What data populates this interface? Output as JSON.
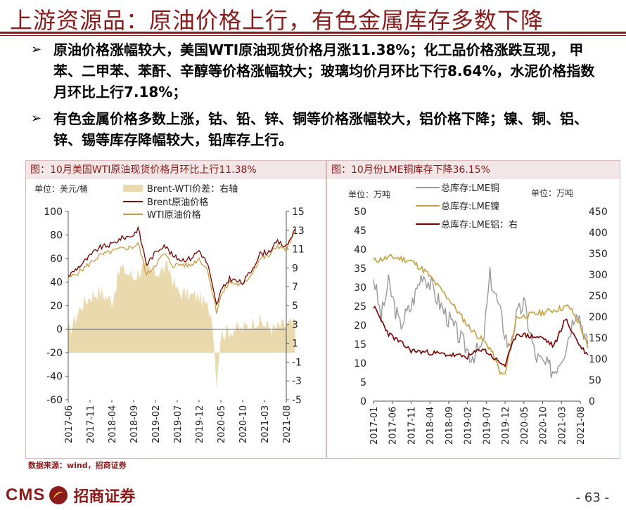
{
  "header": {
    "title": "上游资源品：原油价格上行，有色金属库存多数下降"
  },
  "bullets": [
    "原油价格涨幅较大，美国WTI原油现货价格月涨11.38%；化工品价格涨跌互现， 甲苯、二甲苯、苯酐、辛醇等价格涨幅较大；玻璃均价月环比下行8.64%，水泥价格指数月环比上行7.18%；",
    "有色金属价格多数上涨，钴、铅、锌、铜等价格涨幅较大，铝价格下降；镍、铜、铝、锌、锡等库存降幅较大，铅库存上行。"
  ],
  "bullet_marker": "➢",
  "footer": {
    "source": "数据来源：wind，招商证券",
    "logo_text": "CMS",
    "logo_cn": "招商证券",
    "page": "- 63 -"
  },
  "colors": {
    "brand": "#8b1a1a",
    "brent": "#7a0000",
    "wti": "#c8a040",
    "spread": "#e9d9ad",
    "lme_cu": "#999999",
    "lme_ni": "#c8a040",
    "lme_al": "#7a0000"
  },
  "chart_data": [
    {
      "type": "line",
      "title": "图：10月美国WTI原油现货价格月环比上行11.38%",
      "left_unit": "单位：美元/桶",
      "x_ticks": [
        "2017-06",
        "2017-11",
        "2018-04",
        "2018-09",
        "2019-02",
        "2019-07",
        "2019-12",
        "2020-05",
        "2020-10",
        "2021-03",
        "2021-08"
      ],
      "ylim": [
        -60,
        100
      ],
      "y_ticks": [
        100,
        80,
        60,
        40,
        20,
        0,
        -20,
        -40,
        -60
      ],
      "y2lim": [
        -5,
        15
      ],
      "y2_ticks": [
        15,
        13,
        11,
        9,
        7,
        5,
        3,
        1,
        -1,
        -3,
        -5
      ],
      "legend_position": "top",
      "series": [
        {
          "name": "Brent-WTI价差：右轴",
          "type": "area",
          "axis": "right",
          "x": [
            "2017-06",
            "2017-09",
            "2017-11",
            "2018-01",
            "2018-04",
            "2018-06",
            "2018-09",
            "2018-11",
            "2019-02",
            "2019-05",
            "2019-07",
            "2019-10",
            "2019-12",
            "2020-03",
            "2020-04",
            "2020-05",
            "2020-08",
            "2020-10",
            "2021-01",
            "2021-03",
            "2021-05",
            "2021-08",
            "2021-10"
          ],
          "values": [
            2,
            5,
            6,
            6.5,
            5.5,
            9,
            8,
            9,
            8.5,
            9,
            6.5,
            6,
            6,
            4,
            -3,
            2,
            2.5,
            2.5,
            3.5,
            3,
            2.5,
            3,
            3
          ]
        },
        {
          "name": "Brent原油价格",
          "type": "line",
          "axis": "left",
          "x": [
            "2017-06",
            "2017-09",
            "2017-11",
            "2018-01",
            "2018-04",
            "2018-06",
            "2018-09",
            "2018-10",
            "2018-12",
            "2019-02",
            "2019-04",
            "2019-06",
            "2019-08",
            "2019-10",
            "2019-12",
            "2020-02",
            "2020-04",
            "2020-05",
            "2020-07",
            "2020-10",
            "2020-12",
            "2021-02",
            "2021-04",
            "2021-06",
            "2021-08",
            "2021-10"
          ],
          "values": [
            45,
            55,
            62,
            69,
            72,
            77,
            80,
            86,
            55,
            65,
            72,
            62,
            59,
            60,
            67,
            55,
            20,
            32,
            43,
            39,
            50,
            64,
            66,
            74,
            70,
            85
          ]
        },
        {
          "name": "WTI原油价格",
          "type": "line",
          "axis": "left",
          "x": [
            "2017-06",
            "2017-09",
            "2017-11",
            "2018-01",
            "2018-04",
            "2018-06",
            "2018-09",
            "2018-10",
            "2018-12",
            "2019-02",
            "2019-04",
            "2019-06",
            "2019-08",
            "2019-10",
            "2019-12",
            "2020-02",
            "2020-04",
            "2020-05",
            "2020-07",
            "2020-10",
            "2020-12",
            "2021-02",
            "2021-04",
            "2021-06",
            "2021-08",
            "2021-10"
          ],
          "values": [
            43,
            50,
            56,
            62,
            66,
            68,
            70,
            73,
            46,
            55,
            64,
            54,
            55,
            54,
            60,
            50,
            15,
            28,
            40,
            37,
            47,
            60,
            62,
            71,
            67,
            83
          ]
        }
      ]
    },
    {
      "type": "line",
      "title": "图：10月份LME铜库存下降36.15%",
      "left_unit": "单位：万吨",
      "right_unit": "单位：万吨",
      "x_ticks": [
        "2017-01",
        "2017-06",
        "2017-11",
        "2018-04",
        "2018-09",
        "2019-02",
        "2019-07",
        "2019-12",
        "2020-05",
        "2020-10",
        "2021-03",
        "2021-08"
      ],
      "ylim": [
        0,
        50
      ],
      "y_ticks": [
        50,
        45,
        40,
        35,
        30,
        25,
        20,
        15,
        10,
        5,
        0
      ],
      "y2lim": [
        0,
        450
      ],
      "y2_ticks": [
        450,
        400,
        350,
        300,
        250,
        200,
        150,
        100,
        50,
        0
      ],
      "legend_position": "top",
      "series": [
        {
          "name": "总库存:LME铜",
          "axis": "left",
          "x": [
            "2017-01",
            "2017-03",
            "2017-05",
            "2017-08",
            "2017-11",
            "2018-02",
            "2018-04",
            "2018-07",
            "2018-10",
            "2019-01",
            "2019-03",
            "2019-06",
            "2019-08",
            "2019-10",
            "2020-01",
            "2020-03",
            "2020-05",
            "2020-08",
            "2020-10",
            "2021-01",
            "2021-04",
            "2021-07",
            "2021-10"
          ],
          "values": [
            33,
            22,
            31,
            20,
            25,
            34,
            31,
            25,
            20,
            15,
            12,
            14,
            33,
            26,
            14,
            22,
            26,
            12,
            10,
            8,
            14,
            25,
            15
          ]
        },
        {
          "name": "总库存:LME镍",
          "axis": "left",
          "x": [
            "2017-01",
            "2017-06",
            "2017-11",
            "2018-03",
            "2018-09",
            "2019-02",
            "2019-06",
            "2019-08",
            "2019-11",
            "2019-12",
            "2020-03",
            "2020-08",
            "2021-01",
            "2021-05",
            "2021-08",
            "2021-10"
          ],
          "values": [
            37,
            38,
            37,
            34,
            27,
            20,
            16,
            14,
            7,
            7,
            22,
            23,
            24,
            25,
            20,
            14
          ]
        },
        {
          "name": "总库存:LME铝：右",
          "axis": "right",
          "x": [
            "2017-01",
            "2017-05",
            "2017-11",
            "2018-04",
            "2018-09",
            "2019-02",
            "2019-06",
            "2019-10",
            "2019-12",
            "2020-03",
            "2020-06",
            "2020-10",
            "2021-01",
            "2021-04",
            "2021-08",
            "2021-10"
          ],
          "values": [
            225,
            160,
            120,
            115,
            110,
            105,
            125,
            95,
            85,
            160,
            155,
            150,
            130,
            195,
            130,
            110
          ]
        }
      ]
    }
  ]
}
